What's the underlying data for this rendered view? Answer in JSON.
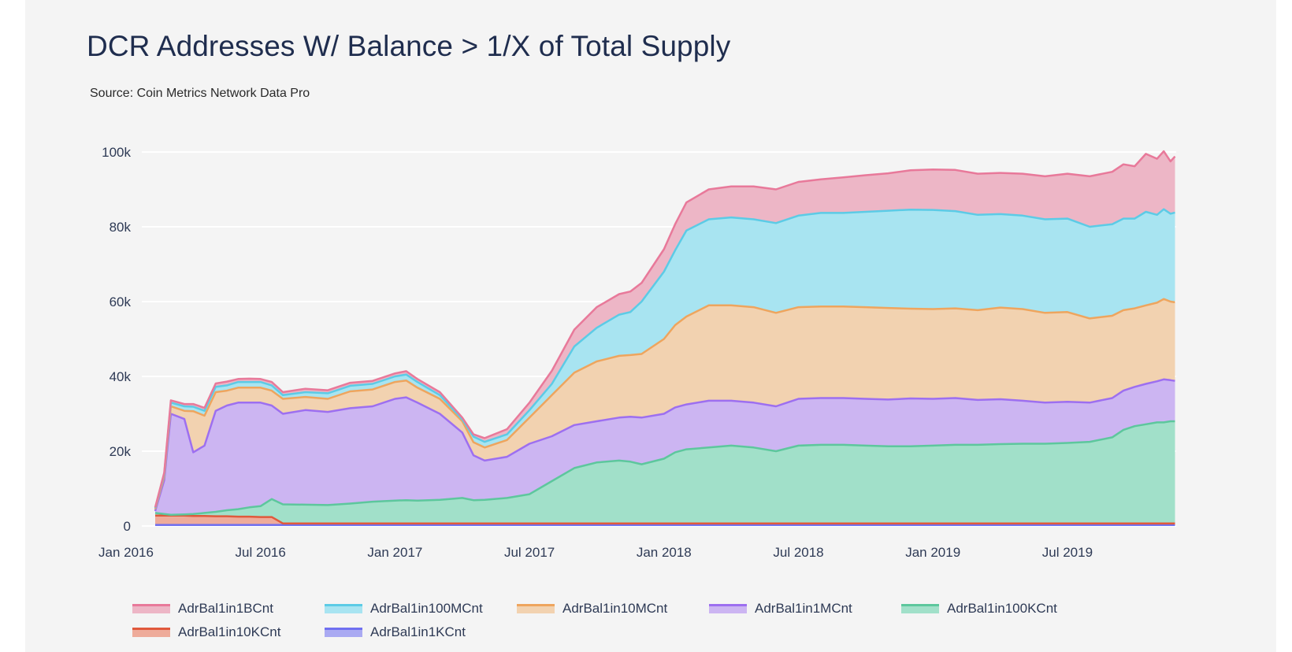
{
  "header": {
    "title": "DCR Addresses W/ Balance > 1/X of Total Supply",
    "subtitle": "Source: Coin Metrics Network Data Pro"
  },
  "chart_data": {
    "type": "area",
    "stacked": true,
    "title": "DCR Addresses W/ Balance > 1/X of Total Supply",
    "subtitle": "Source: Coin Metrics Network Data Pro",
    "xlabel": "",
    "ylabel": "",
    "ylim": [
      0,
      100000
    ],
    "grid": true,
    "legend_position": "bottom",
    "y_ticks": [
      {
        "value": 0,
        "label": "0"
      },
      {
        "value": 20000,
        "label": "20k"
      },
      {
        "value": 40000,
        "label": "40k"
      },
      {
        "value": 60000,
        "label": "60k"
      },
      {
        "value": 80000,
        "label": "80k"
      },
      {
        "value": 100000,
        "label": "100k"
      }
    ],
    "x_ticks": [
      {
        "month": 0,
        "label": "Jan 2016"
      },
      {
        "month": 6,
        "label": "Jul 2016"
      },
      {
        "month": 12,
        "label": "Jan 2017"
      },
      {
        "month": 18,
        "label": "Jul 2017"
      },
      {
        "month": 24,
        "label": "Jan 2018"
      },
      {
        "month": 30,
        "label": "Jul 2018"
      },
      {
        "month": 36,
        "label": "Jan 2019"
      },
      {
        "month": 42,
        "label": "Jul 2019"
      }
    ],
    "x_unit": "months since Jan 2016",
    "x": [
      1.3,
      1.7,
      2,
      2.6,
      3,
      3.5,
      4,
      4.5,
      5,
      5.5,
      6,
      6.5,
      7,
      8,
      9,
      10,
      11,
      12,
      12.5,
      13,
      14,
      15,
      15.5,
      16,
      17,
      18,
      19,
      20,
      21,
      22,
      22.5,
      23,
      24,
      24.5,
      25,
      26,
      27,
      28,
      29,
      30,
      31,
      32,
      33,
      34,
      35,
      36,
      37,
      38,
      39,
      40,
      41,
      42,
      43,
      44,
      44.5,
      45,
      45.5,
      46,
      46.3,
      46.6,
      46.8
    ],
    "series": [
      {
        "name": "AdrBal1in1BCnt",
        "color": "#e8799a",
        "fill": "#edb6c6",
        "values": [
          0.2,
          0.4,
          0.6,
          0.6,
          0.7,
          0.8,
          0.9,
          1.0,
          0.8,
          0.9,
          0.8,
          0.9,
          0.8,
          0.9,
          0.8,
          0.8,
          0.8,
          0.8,
          0.9,
          0.8,
          0.8,
          0.5,
          0.6,
          1.0,
          1.4,
          2.0,
          3.5,
          4.5,
          5.5,
          5.5,
          5.5,
          5.0,
          6.0,
          7.0,
          7.5,
          8.0,
          8.3,
          8.8,
          9.0,
          9.0,
          9.0,
          9.5,
          9.8,
          10.0,
          10.5,
          10.8,
          11.0,
          11.0,
          11.0,
          11.2,
          11.5,
          12.0,
          13.5,
          14.0,
          14.5,
          14.0,
          15.5,
          15.0,
          15.5,
          14.0,
          15.0
        ]
      },
      {
        "name": "AdrBal1in100MCnt",
        "color": "#5ccbe6",
        "fill": "#a8e4f1",
        "values": [
          0.3,
          0.6,
          1.0,
          1.2,
          1.2,
          1.3,
          1.4,
          1.4,
          1.5,
          1.5,
          1.5,
          1.4,
          1.0,
          1.3,
          1.5,
          1.5,
          1.5,
          1.5,
          1.6,
          1.5,
          1.0,
          0.5,
          1.5,
          1.5,
          1.5,
          2.0,
          3.0,
          7.0,
          9.0,
          11.0,
          11.5,
          14.0,
          18.0,
          20.0,
          23.0,
          23.0,
          23.5,
          23.5,
          24.0,
          24.5,
          25.0,
          25.0,
          25.5,
          26.0,
          26.5,
          26.5,
          26.0,
          25.5,
          25.0,
          25.0,
          25.0,
          25.0,
          24.5,
          24.5,
          24.5,
          24.0,
          25.0,
          23.5,
          24.0,
          23.5,
          24.0
        ]
      },
      {
        "name": "AdrBal1in10MCnt",
        "color": "#eea55e",
        "fill": "#f2d2b0",
        "values": [
          0.5,
          1.0,
          2.0,
          2.2,
          11.0,
          8.0,
          5.0,
          4.0,
          4.0,
          4.0,
          4.0,
          4.0,
          4.0,
          3.5,
          3.5,
          4.5,
          4.5,
          4.5,
          4.5,
          4.0,
          4.0,
          3.0,
          3.5,
          3.5,
          4.5,
          7.0,
          11.0,
          14.0,
          16.0,
          16.5,
          16.5,
          17.0,
          20.0,
          22.0,
          23.5,
          25.5,
          25.5,
          25.5,
          25.0,
          24.5,
          24.5,
          24.5,
          24.5,
          24.5,
          24.0,
          24.0,
          24.0,
          24.0,
          24.5,
          24.5,
          24.0,
          24.0,
          22.5,
          22.0,
          21.5,
          21.0,
          21.0,
          21.0,
          21.5,
          21.0,
          21.0
        ]
      },
      {
        "name": "AdrBal1in1MCnt",
        "color": "#9d6ff0",
        "fill": "#ccb5f2",
        "values": [
          0.5,
          9.0,
          27.0,
          25.5,
          16.5,
          18.0,
          27.0,
          28.0,
          28.5,
          28.0,
          27.7,
          25.0,
          24.2,
          25.3,
          24.9,
          25.5,
          25.5,
          27.2,
          27.5,
          26.2,
          23.0,
          17.5,
          12.0,
          10.5,
          11.0,
          13.5,
          12.0,
          11.5,
          11.0,
          11.5,
          12.0,
          12.5,
          12.0,
          12.0,
          12.0,
          12.5,
          12.0,
          12.0,
          12.0,
          12.5,
          12.5,
          12.5,
          12.5,
          12.5,
          12.8,
          12.5,
          12.5,
          12.0,
          12.0,
          11.5,
          11.0,
          11.0,
          10.5,
          10.5,
          10.5,
          10.5,
          10.8,
          11.0,
          11.5,
          11.0,
          10.8
        ]
      },
      {
        "name": "AdrBal1in100KCnt",
        "color": "#5dc79d",
        "fill": "#a1e0c9",
        "values": [
          0.7,
          0.4,
          0.2,
          0.3,
          0.5,
          0.8,
          1.2,
          1.6,
          2.0,
          2.5,
          2.9,
          4.8,
          5.1,
          5.0,
          4.9,
          5.3,
          5.8,
          6.1,
          6.2,
          6.1,
          6.3,
          6.8,
          6.2,
          6.3,
          6.8,
          7.8,
          11.3,
          14.8,
          16.3,
          16.8,
          16.5,
          15.8,
          17.3,
          19.0,
          19.8,
          20.3,
          20.8,
          20.3,
          19.3,
          20.8,
          21.0,
          21.0,
          20.8,
          20.6,
          20.6,
          20.8,
          21.0,
          21.0,
          21.2,
          21.3,
          21.3,
          21.5,
          21.8,
          23.0,
          25.0,
          26.0,
          26.5,
          27.0,
          27.0,
          27.3,
          27.3
        ]
      },
      {
        "name": "AdrBal1in10KCnt",
        "color": "#e0593c",
        "fill": "#eeab9a",
        "values": [
          2.5,
          2.5,
          2.5,
          2.5,
          2.4,
          2.4,
          2.3,
          2.3,
          2.2,
          2.2,
          2.1,
          2.1,
          0.4,
          0.4,
          0.4,
          0.4,
          0.4,
          0.4,
          0.4,
          0.4,
          0.4,
          0.4,
          0.4,
          0.4,
          0.4,
          0.4,
          0.4,
          0.4,
          0.4,
          0.4,
          0.4,
          0.4,
          0.4,
          0.4,
          0.4,
          0.4,
          0.4,
          0.4,
          0.4,
          0.4,
          0.4,
          0.4,
          0.4,
          0.4,
          0.4,
          0.4,
          0.4,
          0.4,
          0.4,
          0.4,
          0.4,
          0.4,
          0.4,
          0.4,
          0.4,
          0.4,
          0.4,
          0.4,
          0.4,
          0.4,
          0.4
        ]
      },
      {
        "name": "AdrBal1in1KCnt",
        "color": "#6f6ff0",
        "fill": "#a9a9f2",
        "values": [
          0.3,
          0.3,
          0.3,
          0.3,
          0.3,
          0.3,
          0.3,
          0.3,
          0.3,
          0.3,
          0.3,
          0.3,
          0.3,
          0.3,
          0.3,
          0.3,
          0.3,
          0.3,
          0.3,
          0.3,
          0.3,
          0.3,
          0.3,
          0.3,
          0.3,
          0.3,
          0.3,
          0.3,
          0.3,
          0.3,
          0.3,
          0.3,
          0.3,
          0.3,
          0.3,
          0.3,
          0.3,
          0.3,
          0.3,
          0.3,
          0.3,
          0.3,
          0.3,
          0.3,
          0.3,
          0.3,
          0.3,
          0.3,
          0.3,
          0.3,
          0.3,
          0.3,
          0.3,
          0.3,
          0.3,
          0.3,
          0.3,
          0.3,
          0.3,
          0.3,
          0.3
        ]
      }
    ],
    "values_unit": "thousands of addresses",
    "stack_order_bottom_to_top": [
      "AdrBal1in1KCnt",
      "AdrBal1in10KCnt",
      "AdrBal1in100KCnt",
      "AdrBal1in1MCnt",
      "AdrBal1in10MCnt",
      "AdrBal1in100MCnt",
      "AdrBal1in1BCnt"
    ]
  },
  "legend": {
    "items": [
      {
        "label": "AdrBal1in1BCnt",
        "color": "#e8799a",
        "fill": "#edb6c6"
      },
      {
        "label": "AdrBal1in100MCnt",
        "color": "#5ccbe6",
        "fill": "#a8e4f1"
      },
      {
        "label": "AdrBal1in10MCnt",
        "color": "#eea55e",
        "fill": "#f2d2b0"
      },
      {
        "label": "AdrBal1in1MCnt",
        "color": "#9d6ff0",
        "fill": "#ccb5f2"
      },
      {
        "label": "AdrBal1in100KCnt",
        "color": "#5dc79d",
        "fill": "#a1e0c9"
      },
      {
        "label": "AdrBal1in10KCnt",
        "color": "#e0593c",
        "fill": "#eeab9a"
      },
      {
        "label": "AdrBal1in1KCnt",
        "color": "#6f6ff0",
        "fill": "#a9a9f2"
      }
    ]
  }
}
